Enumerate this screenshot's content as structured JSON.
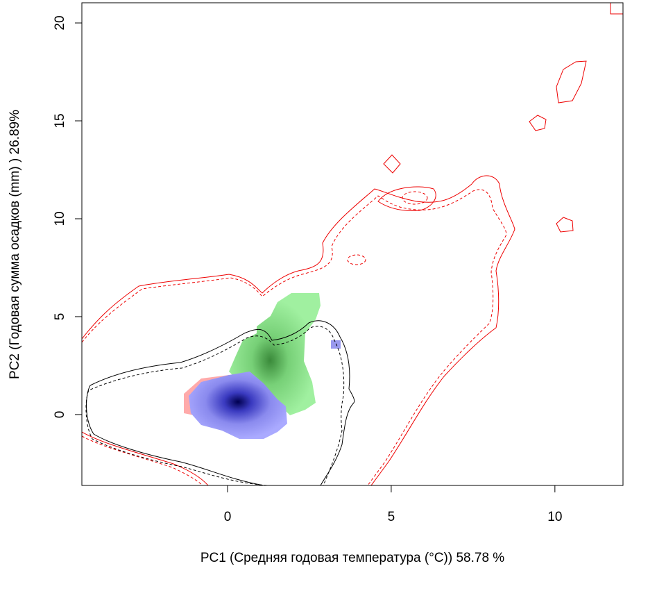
{
  "chart_data": {
    "type": "contour",
    "x_label": "PC1 (Средняя годовая температура (°C)) 58.78 %",
    "y_label": "PC2 (Годовая сумма осадков  (mm) ) 26.89%",
    "xlim": [
      -4.45,
      12.08
    ],
    "ylim": [
      -3.62,
      21.03
    ],
    "xticks": [
      0,
      5,
      10
    ],
    "yticks": [
      0,
      5,
      10,
      15,
      20
    ]
  }
}
